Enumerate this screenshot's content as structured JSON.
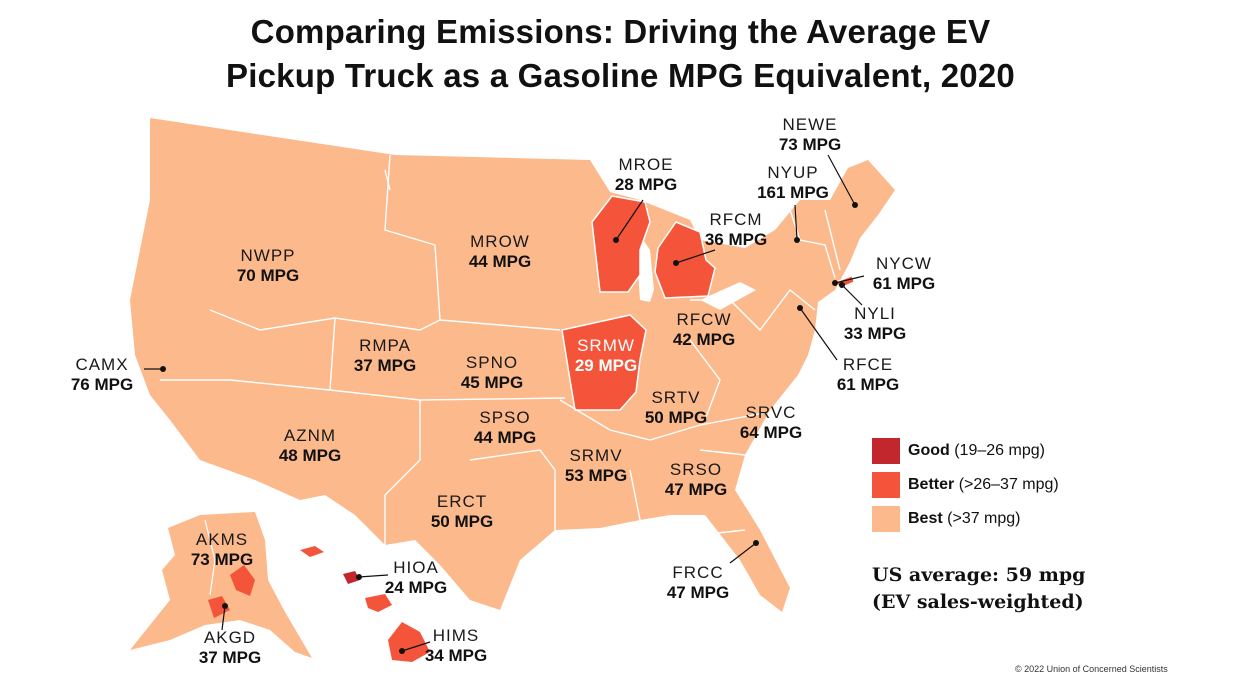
{
  "title_line1": "Comparing Emissions: Driving the Average EV",
  "title_line2": "Pickup Truck as a Gasoline MPG Equivalent, 2020",
  "colors": {
    "good": "#c1272d",
    "better": "#f4553a",
    "best": "#fcb98c",
    "borders": "#ffffff"
  },
  "regions": [
    {
      "id": "nwpp",
      "code": "NWPP",
      "value": "70 MPG",
      "category": "best"
    },
    {
      "id": "camx",
      "code": "CAMX",
      "value": "76 MPG",
      "category": "best"
    },
    {
      "id": "rmpa",
      "code": "RMPA",
      "value": "37 MPG",
      "category": "better"
    },
    {
      "id": "aznm",
      "code": "AZNM",
      "value": "48 MPG",
      "category": "best"
    },
    {
      "id": "mrow",
      "code": "MROW",
      "value": "44 MPG",
      "category": "best"
    },
    {
      "id": "spno",
      "code": "SPNO",
      "value": "45 MPG",
      "category": "best"
    },
    {
      "id": "spso",
      "code": "SPSO",
      "value": "44 MPG",
      "category": "best"
    },
    {
      "id": "erct",
      "code": "ERCT",
      "value": "50 MPG",
      "category": "best"
    },
    {
      "id": "mroe",
      "code": "MROE",
      "value": "28 MPG",
      "category": "better"
    },
    {
      "id": "srmw",
      "code": "SRMW",
      "value": "29 MPG",
      "category": "better"
    },
    {
      "id": "rfcm",
      "code": "RFCM",
      "value": "36 MPG",
      "category": "better"
    },
    {
      "id": "rfcw",
      "code": "RFCW",
      "value": "42 MPG",
      "category": "best"
    },
    {
      "id": "srtv",
      "code": "SRTV",
      "value": "50 MPG",
      "category": "best"
    },
    {
      "id": "srmv",
      "code": "SRMV",
      "value": "53 MPG",
      "category": "best"
    },
    {
      "id": "srso",
      "code": "SRSO",
      "value": "47 MPG",
      "category": "best"
    },
    {
      "id": "srvc",
      "code": "SRVC",
      "value": "64 MPG",
      "category": "best"
    },
    {
      "id": "frcc",
      "code": "FRCC",
      "value": "47 MPG",
      "category": "best"
    },
    {
      "id": "newe",
      "code": "NEWE",
      "value": "73 MPG",
      "category": "best"
    },
    {
      "id": "nyup",
      "code": "NYUP",
      "value": "161 MPG",
      "category": "best"
    },
    {
      "id": "nycw",
      "code": "NYCW",
      "value": "61 MPG",
      "category": "best"
    },
    {
      "id": "nyli",
      "code": "NYLI",
      "value": "33 MPG",
      "category": "better"
    },
    {
      "id": "rfce",
      "code": "RFCE",
      "value": "61 MPG",
      "category": "best"
    },
    {
      "id": "akms",
      "code": "AKMS",
      "value": "73 MPG",
      "category": "best"
    },
    {
      "id": "akgd",
      "code": "AKGD",
      "value": "37 MPG",
      "category": "better"
    },
    {
      "id": "hioa",
      "code": "HIOA",
      "value": "24 MPG",
      "category": "good"
    },
    {
      "id": "hims",
      "code": "HIMS",
      "value": "34 MPG",
      "category": "better"
    }
  ],
  "legend": [
    {
      "key": "good",
      "label": "Good",
      "range": "(19–26 mpg)"
    },
    {
      "key": "better",
      "label": "Better",
      "range": "(>26–37 mpg)"
    },
    {
      "key": "best",
      "label": "Best",
      "range": "(>37 mpg)"
    }
  ],
  "us_average_line1": "US average: 59 mpg",
  "us_average_line2": "(EV sales-weighted)",
  "copyright": "© 2022 Union of Concerned Scientists"
}
